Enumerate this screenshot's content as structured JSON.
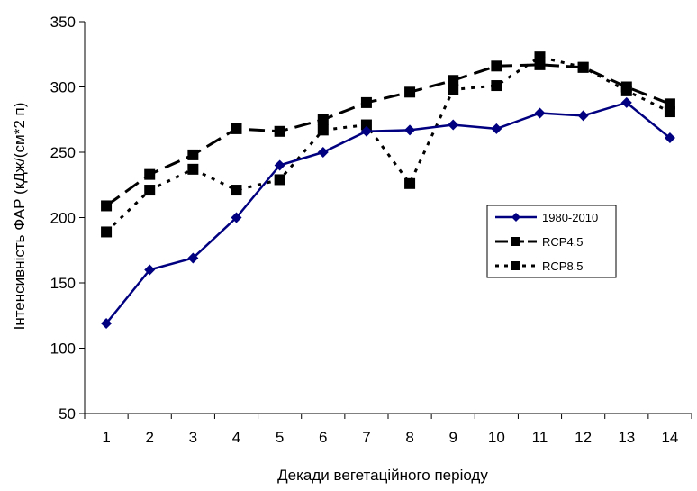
{
  "chart_data": {
    "type": "line",
    "title": "",
    "xlabel": "Декади вегетаційного періоду",
    "ylabel": "Інтенсивність ФАР (кДж/(см*2 п)",
    "categories": [
      "1",
      "2",
      "3",
      "4",
      "5",
      "6",
      "7",
      "8",
      "9",
      "10",
      "11",
      "12",
      "13",
      "14"
    ],
    "yticks": [
      "50",
      "100",
      "150",
      "200",
      "250",
      "300",
      "350"
    ],
    "ylim": [
      50,
      350
    ],
    "grid": false,
    "legend_position": "right-center",
    "series": [
      {
        "name": "1980-2010",
        "values": [
          119,
          160,
          169,
          200,
          240,
          250,
          266,
          267,
          271,
          268,
          280,
          278,
          288,
          261
        ],
        "color": "#000080",
        "line_style": "solid",
        "marker": "diamond"
      },
      {
        "name": "RCP4.5",
        "values": [
          209,
          233,
          248,
          268,
          266,
          275,
          288,
          296,
          305,
          316,
          317,
          315,
          300,
          287
        ],
        "color": "#000000",
        "line_style": "long-dash",
        "marker": "square"
      },
      {
        "name": "RCP8.5",
        "values": [
          189,
          221,
          237,
          221,
          229,
          267,
          271,
          226,
          298,
          301,
          323,
          315,
          297,
          281
        ],
        "color": "#000000",
        "line_style": "dotted",
        "marker": "square"
      }
    ]
  }
}
